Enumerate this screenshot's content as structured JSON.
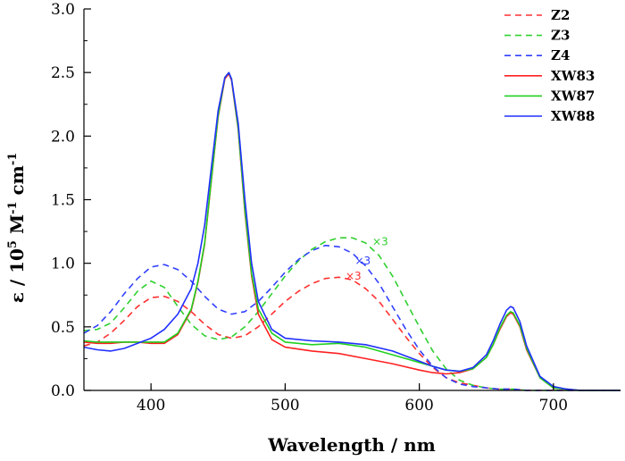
{
  "chart_data": {
    "type": "line",
    "title": "",
    "xlabel": "Wavelength / nm",
    "ylabel": {
      "prefix": "ε / 10",
      "exp1": "5",
      "mid": " M",
      "exp2": "-1",
      "mid2": " cm",
      "exp3": "-1"
    },
    "xlim": [
      350,
      750
    ],
    "ylim": [
      0,
      3.0
    ],
    "xticks": [
      400,
      500,
      600,
      700
    ],
    "yticks": [
      "0.0",
      "0.5",
      "1.0",
      "1.5",
      "2.0",
      "2.5",
      "3.0"
    ],
    "legend_position": "top-right",
    "series": [
      {
        "name": "Z2",
        "color": "#ff3030",
        "style": "dashed",
        "x": [
          350,
          360,
          370,
          380,
          390,
          400,
          410,
          420,
          430,
          440,
          450,
          460,
          470,
          480,
          490,
          500,
          510,
          520,
          530,
          540,
          550,
          560,
          570,
          580,
          590,
          600,
          610,
          620,
          630,
          640,
          650,
          660,
          670,
          680,
          690,
          700,
          720,
          750
        ],
        "y": [
          0.35,
          0.38,
          0.45,
          0.55,
          0.66,
          0.73,
          0.74,
          0.7,
          0.62,
          0.52,
          0.44,
          0.41,
          0.43,
          0.5,
          0.6,
          0.7,
          0.78,
          0.84,
          0.88,
          0.89,
          0.87,
          0.8,
          0.7,
          0.56,
          0.42,
          0.29,
          0.18,
          0.1,
          0.06,
          0.04,
          0.02,
          0.01,
          0.01,
          0.0,
          0.0,
          0.0,
          0.0,
          0.0
        ]
      },
      {
        "name": "Z3",
        "color": "#30d030",
        "style": "dashed",
        "x": [
          350,
          360,
          370,
          380,
          390,
          400,
          410,
          420,
          430,
          440,
          450,
          460,
          470,
          480,
          490,
          500,
          510,
          520,
          530,
          540,
          550,
          560,
          570,
          580,
          590,
          600,
          610,
          620,
          630,
          640,
          650,
          660,
          670,
          680,
          690,
          700,
          720,
          750
        ],
        "y": [
          0.47,
          0.48,
          0.53,
          0.65,
          0.78,
          0.86,
          0.81,
          0.66,
          0.52,
          0.43,
          0.4,
          0.42,
          0.5,
          0.62,
          0.76,
          0.9,
          1.02,
          1.11,
          1.17,
          1.2,
          1.2,
          1.16,
          1.06,
          0.9,
          0.7,
          0.5,
          0.31,
          0.17,
          0.08,
          0.04,
          0.02,
          0.01,
          0.01,
          0.0,
          0.0,
          0.0,
          0.0,
          0.0
        ]
      },
      {
        "name": "Z4",
        "color": "#3040ff",
        "style": "dashed",
        "x": [
          350,
          360,
          370,
          380,
          390,
          400,
          410,
          420,
          430,
          440,
          450,
          460,
          470,
          480,
          490,
          500,
          510,
          520,
          530,
          540,
          550,
          560,
          570,
          580,
          590,
          600,
          610,
          620,
          630,
          640,
          650,
          660,
          670,
          680,
          690,
          700,
          720,
          750
        ],
        "y": [
          0.45,
          0.51,
          0.62,
          0.76,
          0.88,
          0.97,
          0.99,
          0.95,
          0.86,
          0.74,
          0.64,
          0.6,
          0.62,
          0.7,
          0.81,
          0.93,
          1.03,
          1.1,
          1.14,
          1.13,
          1.08,
          0.98,
          0.84,
          0.66,
          0.48,
          0.32,
          0.19,
          0.1,
          0.05,
          0.03,
          0.02,
          0.01,
          0.01,
          0.0,
          0.0,
          0.0,
          0.0,
          0.0
        ]
      },
      {
        "name": "XW83",
        "color": "#ff2020",
        "style": "solid",
        "x": [
          350,
          360,
          370,
          380,
          390,
          400,
          410,
          420,
          430,
          435,
          440,
          445,
          450,
          455,
          458,
          460,
          465,
          470,
          475,
          480,
          490,
          500,
          520,
          540,
          560,
          580,
          600,
          610,
          620,
          630,
          640,
          650,
          655,
          660,
          665,
          668,
          670,
          675,
          680,
          690,
          700,
          710,
          720,
          750
        ],
        "y": [
          0.38,
          0.37,
          0.37,
          0.38,
          0.38,
          0.37,
          0.37,
          0.44,
          0.63,
          0.85,
          1.15,
          1.65,
          2.15,
          2.45,
          2.49,
          2.44,
          2.05,
          1.4,
          0.9,
          0.6,
          0.4,
          0.34,
          0.31,
          0.29,
          0.25,
          0.21,
          0.16,
          0.14,
          0.13,
          0.14,
          0.17,
          0.26,
          0.36,
          0.48,
          0.58,
          0.61,
          0.6,
          0.5,
          0.32,
          0.1,
          0.02,
          0.01,
          0.0,
          0.0
        ]
      },
      {
        "name": "XW87",
        "color": "#20d020",
        "style": "solid",
        "x": [
          350,
          360,
          370,
          380,
          390,
          400,
          410,
          420,
          430,
          435,
          440,
          445,
          450,
          455,
          458,
          460,
          465,
          470,
          475,
          480,
          490,
          500,
          520,
          540,
          560,
          580,
          600,
          610,
          620,
          630,
          640,
          650,
          655,
          660,
          665,
          668,
          670,
          675,
          680,
          690,
          700,
          710,
          720,
          750
        ],
        "y": [
          0.39,
          0.38,
          0.38,
          0.38,
          0.38,
          0.38,
          0.38,
          0.45,
          0.64,
          0.86,
          1.16,
          1.66,
          2.16,
          2.46,
          2.5,
          2.45,
          2.06,
          1.42,
          0.92,
          0.64,
          0.45,
          0.38,
          0.36,
          0.37,
          0.34,
          0.28,
          0.22,
          0.19,
          0.16,
          0.15,
          0.17,
          0.26,
          0.36,
          0.49,
          0.59,
          0.62,
          0.61,
          0.51,
          0.33,
          0.1,
          0.02,
          0.01,
          0.0,
          0.0
        ]
      },
      {
        "name": "XW88",
        "color": "#2030ff",
        "style": "solid",
        "x": [
          350,
          360,
          370,
          380,
          390,
          400,
          410,
          420,
          430,
          435,
          440,
          445,
          450,
          455,
          458,
          460,
          465,
          470,
          475,
          480,
          490,
          500,
          520,
          540,
          560,
          580,
          600,
          610,
          620,
          630,
          640,
          650,
          655,
          660,
          665,
          668,
          670,
          675,
          680,
          690,
          700,
          710,
          720,
          750
        ],
        "y": [
          0.34,
          0.32,
          0.31,
          0.33,
          0.37,
          0.41,
          0.48,
          0.6,
          0.8,
          1.0,
          1.3,
          1.75,
          2.2,
          2.46,
          2.5,
          2.45,
          2.1,
          1.5,
          1.0,
          0.7,
          0.48,
          0.41,
          0.39,
          0.38,
          0.36,
          0.31,
          0.23,
          0.19,
          0.16,
          0.15,
          0.18,
          0.28,
          0.39,
          0.52,
          0.63,
          0.66,
          0.65,
          0.54,
          0.35,
          0.11,
          0.03,
          0.01,
          0.0,
          0.0
        ]
      }
    ],
    "annotations": [
      {
        "text": "×3",
        "x": 565,
        "y": 1.14,
        "color": "#30d030"
      },
      {
        "text": "×3",
        "x": 552,
        "y": 0.99,
        "color": "#3040ff"
      },
      {
        "text": "×3",
        "x": 545,
        "y": 0.87,
        "color": "#ff3030"
      }
    ]
  }
}
